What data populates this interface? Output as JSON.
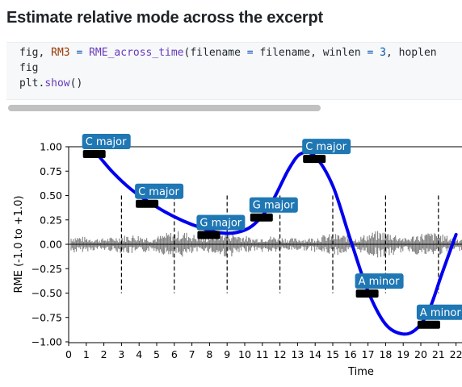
{
  "heading": "Estimate relative mode across the excerpt",
  "code": {
    "line1": {
      "v1": "fig",
      "p1": ", ",
      "v2": "RM3",
      "p2": " ",
      "op1": "=",
      "p3": " ",
      "fn": "RME_across_time",
      "p4": "(filename ",
      "op2": "=",
      "p5": " filename, winlen ",
      "op3": "=",
      "p6": " ",
      "n1": "3",
      "p7": ", hoplen"
    },
    "line2": "fig",
    "line3": {
      "obj": "plt.",
      "fn": "show",
      "tail": "()"
    }
  },
  "chart_data": {
    "type": "line",
    "xlabel": "Time",
    "ylabel": "RME (-1.0 to +1.0)",
    "xlim": [
      0,
      22
    ],
    "ylim": [
      -1.0,
      1.0
    ],
    "xticks": [
      "0",
      "1",
      "2",
      "3",
      "4",
      "5",
      "6",
      "7",
      "8",
      "9",
      "10",
      "11",
      "12",
      "13",
      "14",
      "15",
      "16",
      "17",
      "18",
      "19",
      "20",
      "21",
      "22"
    ],
    "yticks": [
      "1.00",
      "0.75",
      "0.50",
      "0.25",
      "0.00",
      "−0.25",
      "−0.50",
      "−0.75",
      "−1.00"
    ],
    "ytick_values": [
      1.0,
      0.75,
      0.5,
      0.25,
      0.0,
      -0.25,
      -0.5,
      -0.75,
      -1.0
    ],
    "window_boundaries": [
      3,
      6,
      9,
      12,
      15,
      18,
      21
    ],
    "curve": {
      "color": "#0000ee",
      "x": [
        1.5,
        2.5,
        3.5,
        4.5,
        5.5,
        6.5,
        7.5,
        8.5,
        9.5,
        10.5,
        11.5,
        12.5,
        13.2,
        14.0,
        15.0,
        16.0,
        17.0,
        18.0,
        19.0,
        19.8,
        20.5,
        21.2,
        22.0
      ],
      "y": [
        0.95,
        0.74,
        0.57,
        0.44,
        0.33,
        0.24,
        0.17,
        0.12,
        0.12,
        0.2,
        0.42,
        0.77,
        0.93,
        0.9,
        0.6,
        0.05,
        -0.48,
        -0.82,
        -0.92,
        -0.86,
        -0.66,
        -0.3,
        0.1
      ]
    },
    "annotations": [
      {
        "label": "C major",
        "x": 1.5,
        "y": 0.95
      },
      {
        "label": "C major",
        "x": 4.5,
        "y": 0.44
      },
      {
        "label": "G major",
        "x": 8.0,
        "y": 0.12
      },
      {
        "label": "G major",
        "x": 11.0,
        "y": 0.3
      },
      {
        "label": "C major",
        "x": 14.0,
        "y": 0.9
      },
      {
        "label": "A minor",
        "x": 17.0,
        "y": -0.48
      },
      {
        "label": "A minor",
        "x": 20.5,
        "y": -0.8
      }
    ],
    "colors": {
      "label_box": "#1f77b4",
      "waveform": "#808080",
      "line": "#0000ee"
    }
  }
}
